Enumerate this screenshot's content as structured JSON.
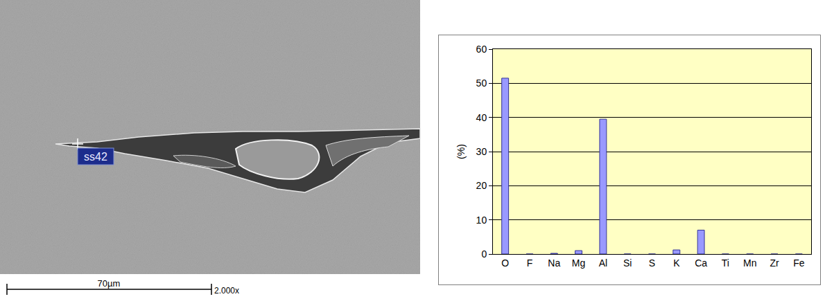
{
  "micrograph": {
    "marker_label": "ss42",
    "scale_bar": "70µm",
    "magnification": "2.000x"
  },
  "chart_data": {
    "type": "bar",
    "y_label": "(%)",
    "categories": [
      "O",
      "F",
      "Na",
      "Mg",
      "Al",
      "Si",
      "S",
      "K",
      "Ca",
      "Ti",
      "Mn",
      "Zr",
      "Fe"
    ],
    "values": [
      51.5,
      0,
      0.2,
      1,
      39.5,
      0,
      0,
      1.2,
      7,
      0,
      0,
      0,
      0
    ],
    "color": "#9999ff",
    "ylim": [
      0,
      60
    ],
    "yticks": [
      0,
      10,
      20,
      30,
      40,
      50,
      60
    ],
    "grid": true
  }
}
